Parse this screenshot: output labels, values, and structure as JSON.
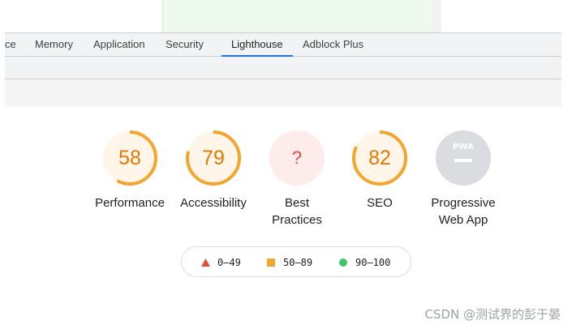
{
  "tabs": [
    {
      "label": "ce"
    },
    {
      "label": "Memory"
    },
    {
      "label": "Application"
    },
    {
      "label": "Security"
    },
    {
      "label": "Lighthouse",
      "active": true
    },
    {
      "label": "Adblock Plus"
    }
  ],
  "gauges": [
    {
      "label_line1": "Performance",
      "label_line2": "",
      "score": "58",
      "value": 58,
      "color": "#f4a52b"
    },
    {
      "label_line1": "Accessibility",
      "label_line2": "",
      "score": "79",
      "value": 79,
      "color": "#f4a52b"
    },
    {
      "label_line1": "Best",
      "label_line2": "Practices",
      "score": "?",
      "value": 0,
      "color": "#e34c3a"
    },
    {
      "label_line1": "SEO",
      "label_line2": "",
      "score": "82",
      "value": 82,
      "color": "#f4a52b"
    },
    {
      "label_line1": "Progressive",
      "label_line2": "Web App",
      "badge": "PWA",
      "color": "#9aa0a6"
    }
  ],
  "legend": [
    {
      "range": "0–49",
      "icon": "triangle-icon",
      "color": "#e34c3a"
    },
    {
      "range": "50–89",
      "icon": "square-icon",
      "color": "#f4a52b"
    },
    {
      "range": "90–100",
      "icon": "circle-icon",
      "color": "#3cc66a"
    }
  ],
  "watermark": "CSDN @测试界的彭于晏"
}
